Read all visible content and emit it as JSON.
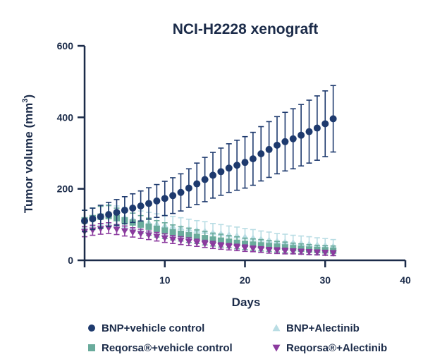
{
  "chart_data": {
    "type": "scatter",
    "title": "NCI-H2228 xenograft",
    "xlabel": "Days",
    "ylabel_main": "Tumor volume (mm",
    "ylabel_sup": "3",
    "ylabel_end": ")",
    "xlim": [
      0,
      40
    ],
    "ylim": [
      0,
      600
    ],
    "x_ticks": [
      10,
      20,
      30,
      40
    ],
    "y_ticks": [
      0,
      200,
      400,
      600
    ],
    "grid": false,
    "legend_position": "bottom",
    "series": [
      {
        "name": "BNP+vehicle control",
        "marker": "circle",
        "color": "#1e3a6e",
        "x": [
          0,
          1,
          2,
          3,
          4,
          5,
          6,
          7,
          8,
          9,
          10,
          11,
          12,
          13,
          14,
          15,
          16,
          17,
          18,
          19,
          20,
          21,
          22,
          23,
          24,
          25,
          26,
          27,
          28,
          29,
          30,
          31
        ],
        "y": [
          110,
          116,
          122,
          128,
          134,
          140,
          146,
          152,
          159,
          166,
          173,
          181,
          190,
          202,
          214,
          226,
          238,
          248,
          258,
          266,
          274,
          284,
          298,
          310,
          322,
          332,
          340,
          350,
          360,
          370,
          382,
          396
        ],
        "error": [
          30,
          30,
          32,
          34,
          36,
          38,
          40,
          42,
          44,
          46,
          48,
          50,
          52,
          54,
          58,
          62,
          64,
          66,
          68,
          70,
          72,
          74,
          76,
          78,
          80,
          82,
          84,
          86,
          88,
          90,
          92,
          93
        ]
      },
      {
        "name": "BNP+Alectinib",
        "marker": "triangle-up",
        "color": "#b9dde4",
        "x": [
          0,
          1,
          2,
          3,
          4,
          5,
          6,
          7,
          8,
          9,
          10,
          11,
          12,
          13,
          14,
          15,
          16,
          17,
          18,
          19,
          20,
          21,
          22,
          23,
          24,
          25,
          26,
          27,
          28,
          29,
          30,
          31
        ],
        "y": [
          115,
          120,
          125,
          128,
          124,
          120,
          115,
          110,
          106,
          102,
          98,
          95,
          92,
          88,
          85,
          82,
          78,
          75,
          72,
          69,
          66,
          63,
          60,
          57,
          54,
          52,
          50,
          48,
          46,
          44,
          42,
          40
        ],
        "error": [
          25,
          26,
          27,
          28,
          28,
          28,
          28,
          28,
          28,
          28,
          28,
          28,
          27,
          27,
          26,
          26,
          25,
          25,
          24,
          24,
          23,
          23,
          22,
          22,
          21,
          21,
          20,
          20,
          20,
          19,
          19,
          18
        ]
      },
      {
        "name": "Reqorsa®+vehicle control",
        "marker": "square",
        "color": "#6aab9c",
        "x": [
          0,
          1,
          2,
          3,
          4,
          5,
          6,
          7,
          8,
          9,
          10,
          11,
          12,
          13,
          14,
          15,
          16,
          17,
          18,
          19,
          20,
          21,
          22,
          23,
          24,
          25,
          26,
          27,
          28,
          29,
          30,
          31
        ],
        "y": [
          112,
          118,
          122,
          124,
          118,
          112,
          106,
          100,
          94,
          88,
          83,
          78,
          74,
          70,
          66,
          62,
          58,
          55,
          52,
          49,
          46,
          44,
          42,
          40,
          38,
          36,
          34,
          32,
          30,
          29,
          28,
          27
        ],
        "error": [
          28,
          28,
          29,
          29,
          28,
          27,
          26,
          25,
          24,
          23,
          22,
          21,
          20,
          20,
          19,
          19,
          18,
          18,
          17,
          17,
          16,
          16,
          16,
          15,
          15,
          15,
          14,
          14,
          14,
          13,
          13,
          13
        ]
      },
      {
        "name": "Reqorsa®+Alectinib",
        "marker": "triangle-down",
        "color": "#8b3a9e",
        "x": [
          0,
          1,
          2,
          3,
          4,
          5,
          6,
          7,
          8,
          9,
          10,
          11,
          12,
          13,
          14,
          15,
          16,
          17,
          18,
          19,
          20,
          21,
          22,
          23,
          24,
          25,
          26,
          27,
          28,
          29,
          30,
          31
        ],
        "y": [
          80,
          84,
          88,
          90,
          86,
          82,
          78,
          74,
          70,
          66,
          62,
          58,
          55,
          52,
          49,
          46,
          43,
          40,
          38,
          36,
          34,
          32,
          30,
          28,
          27,
          26,
          25,
          24,
          23,
          22,
          21,
          20
        ],
        "error": [
          14,
          14,
          15,
          15,
          14,
          14,
          13,
          13,
          12,
          12,
          12,
          11,
          11,
          11,
          10,
          10,
          10,
          9,
          9,
          9,
          9,
          8,
          8,
          8,
          8,
          8,
          7,
          7,
          7,
          7,
          7,
          7
        ]
      }
    ],
    "legend": [
      {
        "label": "BNP+vehicle control",
        "series": 0
      },
      {
        "label": "BNP+Alectinib",
        "series": 1
      },
      {
        "label": "Reqorsa®+vehicle control",
        "series": 2
      },
      {
        "label": "Reqorsa®+Alectinib",
        "series": 3
      }
    ]
  }
}
